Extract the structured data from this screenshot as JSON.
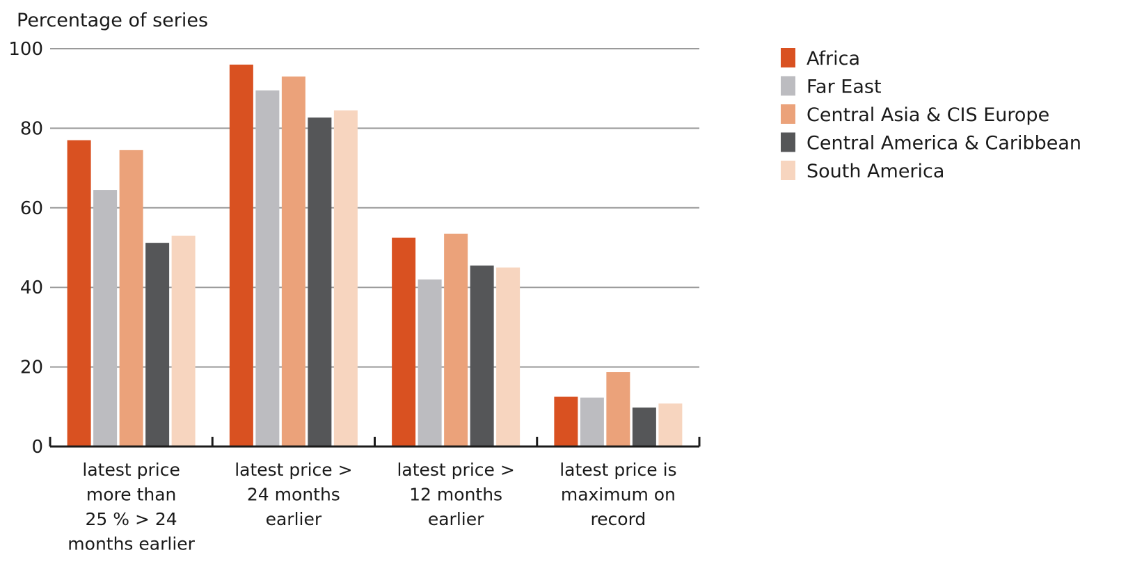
{
  "chart_data": {
    "type": "bar",
    "title": "",
    "xlabel": "",
    "ylabel": "Percentage of series",
    "ylim": [
      0,
      100
    ],
    "yticks": [
      0,
      20,
      40,
      60,
      80,
      100
    ],
    "grid": true,
    "legend_position": "right",
    "categories": [
      [
        "latest price",
        "more than",
        "25 % > 24",
        "months earlier"
      ],
      [
        "latest price >",
        "24 months",
        "earlier"
      ],
      [
        "latest price >",
        "12 months",
        "earlier"
      ],
      [
        "latest price is",
        "maximum on",
        "record"
      ]
    ],
    "series": [
      {
        "name": "Africa",
        "color": "#d95121",
        "values": [
          77,
          96,
          52.5,
          12.5
        ]
      },
      {
        "name": "Far East",
        "color": "#bcbcc0",
        "values": [
          64.5,
          89.5,
          42,
          12.3
        ]
      },
      {
        "name": "Central Asia & CIS Europe",
        "color": "#eba27a",
        "values": [
          74.5,
          93,
          53.5,
          18.7
        ]
      },
      {
        "name": "Central America & Caribbean",
        "color": "#555658",
        "values": [
          51.2,
          82.7,
          45.5,
          9.8
        ]
      },
      {
        "name": "South America",
        "color": "#f7d5bf",
        "values": [
          53,
          84.5,
          45,
          10.8
        ]
      }
    ]
  }
}
